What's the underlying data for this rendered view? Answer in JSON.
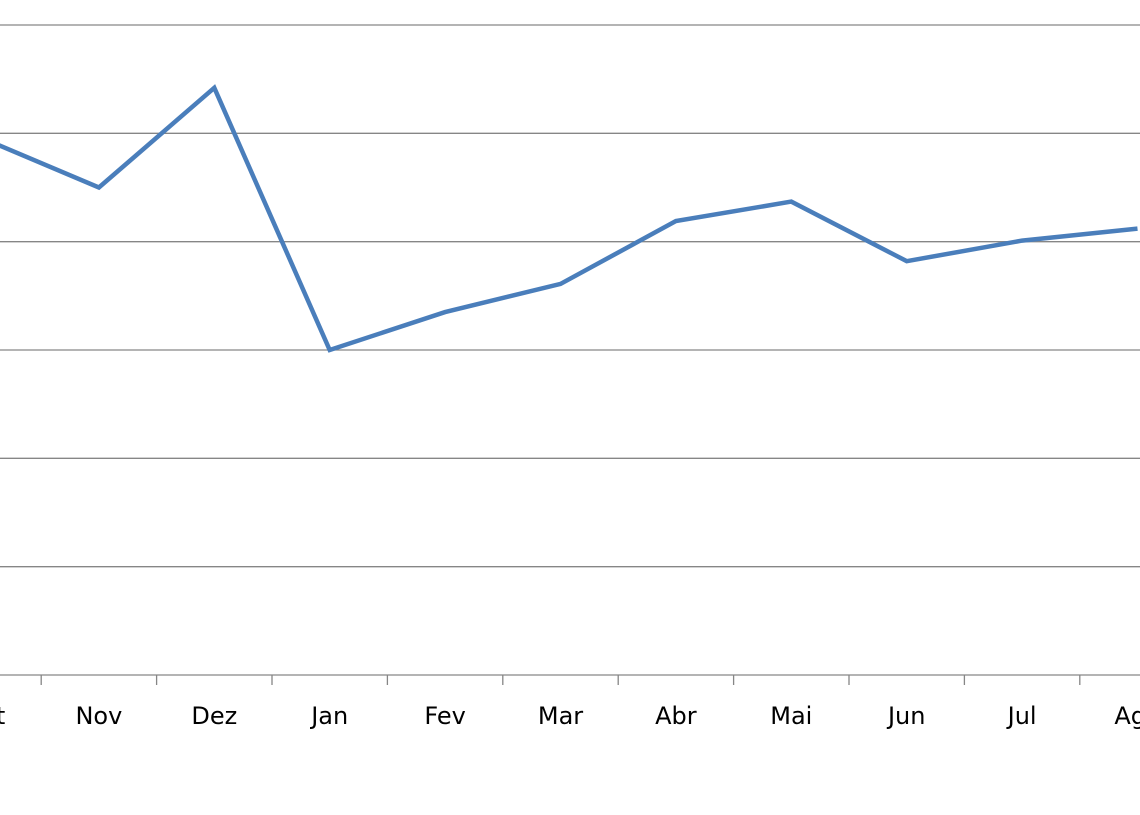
{
  "chart_data": {
    "type": "line",
    "categories": [
      "Out",
      "Nov",
      "Dez",
      "Jan",
      "Fev",
      "Mar",
      "Abr",
      "Mai",
      "Jun",
      "Jul",
      "Ago"
    ],
    "series": [
      {
        "color": "#4a7ebb",
        "values": [
          4.95,
          4.5,
          5.42,
          3.0,
          3.35,
          3.61,
          4.19,
          4.37,
          3.82,
          4.01,
          4.12
        ]
      }
    ],
    "ylim": [
      0,
      6
    ],
    "yticks": [
      0,
      1,
      2,
      3,
      4,
      5,
      6
    ],
    "grid": true
  }
}
